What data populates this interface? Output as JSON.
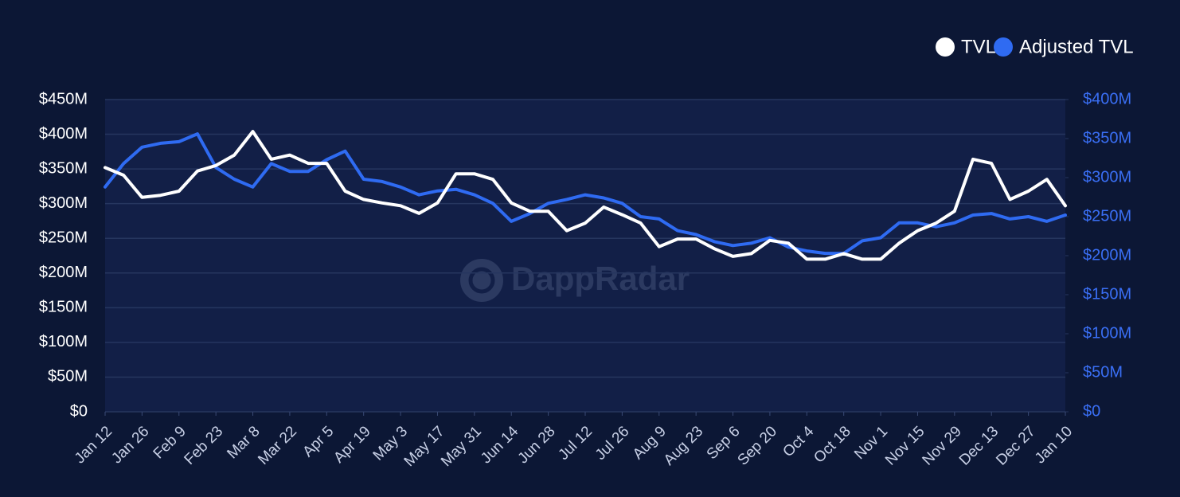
{
  "chart_data": {
    "type": "line",
    "watermark": "DappRadar",
    "categories": [
      "Jan 12",
      null,
      "Jan 26",
      null,
      "Feb 9",
      null,
      "Feb 23",
      null,
      "Mar 8",
      null,
      "Mar 22",
      null,
      "Apr 5",
      null,
      "Apr 19",
      null,
      "May 3",
      null,
      "May 17",
      null,
      "May 31",
      null,
      "Jun 14",
      null,
      "Jun 28",
      null,
      "Jul 12",
      null,
      "Jul 26",
      null,
      "Aug 9",
      null,
      "Aug 23",
      null,
      "Sep 6",
      null,
      "Sep 20",
      null,
      "Oct 4",
      null,
      "Oct 18",
      null,
      "Nov 1",
      null,
      "Nov 15",
      null,
      "Nov 29",
      null,
      "Dec 13",
      null,
      "Dec 27",
      null,
      "Jan 10"
    ],
    "series": [
      {
        "name": "TVL",
        "color": "#ffffff",
        "axis": "y",
        "values": [
          352,
          341,
          309,
          312,
          318,
          347,
          355,
          370,
          404,
          364,
          370,
          358,
          358,
          318,
          306,
          301,
          297,
          286,
          301,
          343,
          343,
          335,
          301,
          289,
          289,
          261,
          272,
          295,
          284,
          272,
          238,
          249,
          249,
          235,
          224,
          228,
          247,
          243,
          220,
          220,
          228,
          220,
          220,
          243,
          261,
          272,
          289,
          364,
          358,
          306,
          318,
          335,
          297
        ]
      },
      {
        "name": "Adjusted TVL",
        "color": "#2f6bf2",
        "axis": "y2",
        "values": [
          288,
          318,
          339,
          344,
          346,
          356,
          313,
          298,
          288,
          318,
          308,
          308,
          323,
          334,
          298,
          295,
          288,
          278,
          283,
          285,
          278,
          267,
          244,
          254,
          267,
          272,
          278,
          274,
          267,
          250,
          247,
          232,
          227,
          218,
          213,
          216,
          223,
          211,
          206,
          203,
          203,
          219,
          223,
          242,
          242,
          237,
          242,
          252,
          254,
          247,
          250,
          244,
          252
        ]
      }
    ],
    "ylim": [
      0,
      450
    ],
    "yticks": [
      {
        "value": 0,
        "label": "$0"
      },
      {
        "value": 50,
        "label": "$50M"
      },
      {
        "value": 100,
        "label": "$100M"
      },
      {
        "value": 150,
        "label": "$150M"
      },
      {
        "value": 200,
        "label": "$200M"
      },
      {
        "value": 250,
        "label": "$250M"
      },
      {
        "value": 300,
        "label": "$300M"
      },
      {
        "value": 350,
        "label": "$350M"
      },
      {
        "value": 400,
        "label": "$400M"
      },
      {
        "value": 450,
        "label": "$450M"
      }
    ],
    "y2lim": [
      0,
      400
    ],
    "y2ticks": [
      {
        "value": 0,
        "label": "$0"
      },
      {
        "value": 50,
        "label": "$50M"
      },
      {
        "value": 100,
        "label": "$100M"
      },
      {
        "value": 150,
        "label": "$150M"
      },
      {
        "value": 200,
        "label": "$200M"
      },
      {
        "value": 250,
        "label": "$250M"
      },
      {
        "value": 300,
        "label": "$300M"
      },
      {
        "value": 350,
        "label": "$350M"
      },
      {
        "value": 400,
        "label": "$400M"
      }
    ],
    "grid": true,
    "legend": "top-right"
  }
}
